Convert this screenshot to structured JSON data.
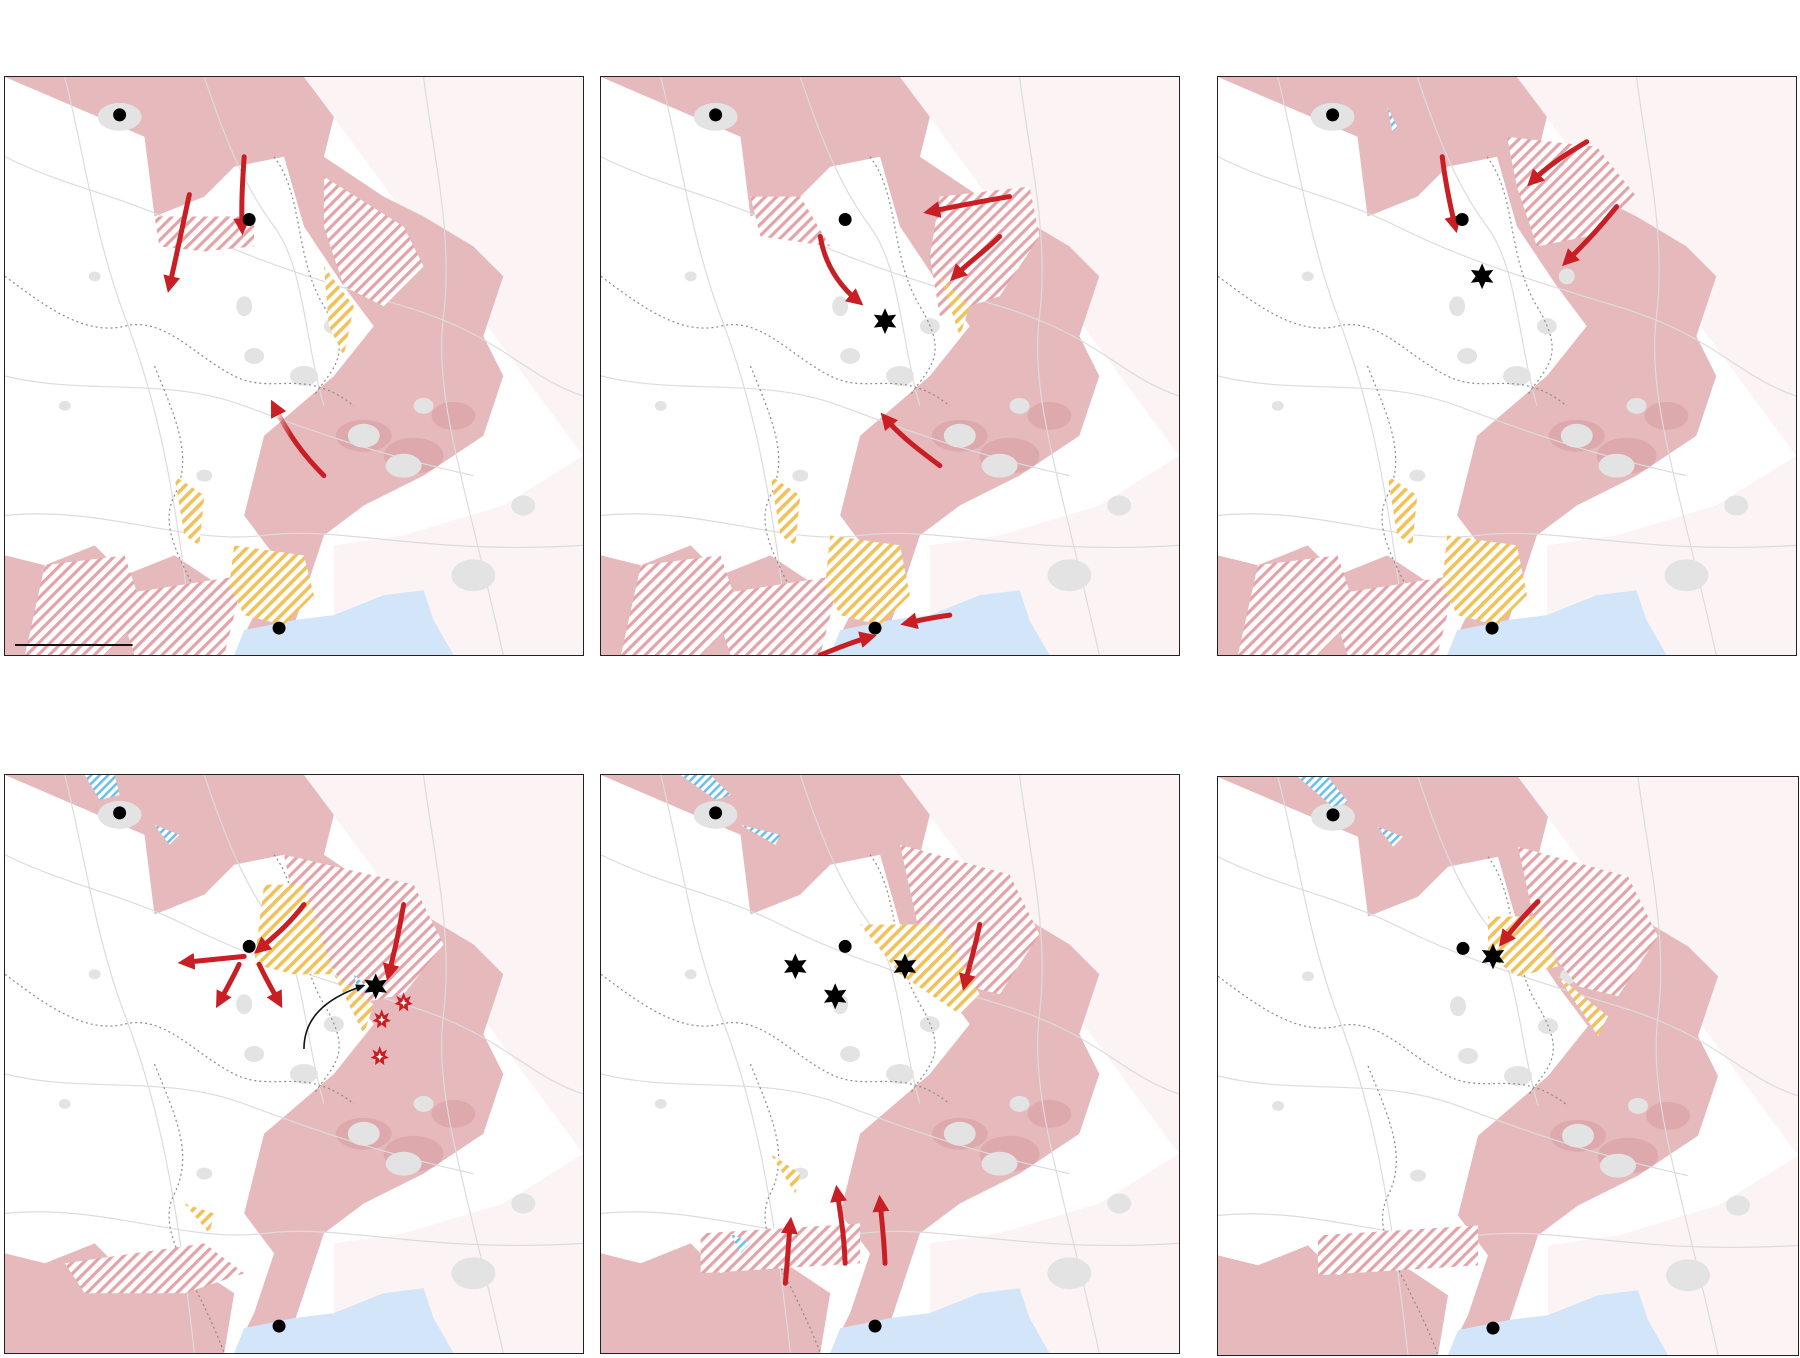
{
  "colors": {
    "occupied": "#e6b9bc",
    "occupied_dark": "#d9a3a7",
    "border_region": "#fbf3f4",
    "contested_red": "#e3a3a8",
    "contested_yellow": "#f2c25a",
    "water": "#d3e5f8",
    "urban": "#e3e3e3",
    "arrow": "#c81e24",
    "city_dot": "#000000",
    "frame": "#222222"
  },
  "legend": {
    "scale_bar": "scale-bar"
  },
  "panels": [
    {
      "id": "p1",
      "features": [
        "city-dot",
        "city-dot",
        "city-dot",
        "arrow",
        "arrow",
        "arrow",
        "scale-bar"
      ]
    },
    {
      "id": "p2",
      "features": [
        "city-dot",
        "city-dot",
        "city-dot",
        "arrow",
        "arrow",
        "arrow",
        "arrow",
        "arrow",
        "arrow",
        "explosion-icon"
      ]
    },
    {
      "id": "p3",
      "features": [
        "city-dot",
        "city-dot",
        "city-dot",
        "arrow",
        "arrow",
        "arrow",
        "explosion-icon"
      ]
    },
    {
      "id": "p4",
      "features": [
        "city-dot",
        "city-dot",
        "city-dot",
        "arrow",
        "arrow",
        "arrow",
        "arrow",
        "arrow",
        "arrow",
        "black-arrow",
        "explosion-icon",
        "fire-icon",
        "fire-icon",
        "fire-icon"
      ]
    },
    {
      "id": "p5",
      "features": [
        "city-dot",
        "city-dot",
        "city-dot",
        "arrow",
        "arrow",
        "arrow",
        "arrow",
        "explosion-icon",
        "explosion-icon",
        "explosion-icon"
      ]
    },
    {
      "id": "p6",
      "features": [
        "city-dot",
        "city-dot",
        "city-dot",
        "arrow",
        "explosion-icon"
      ]
    }
  ]
}
